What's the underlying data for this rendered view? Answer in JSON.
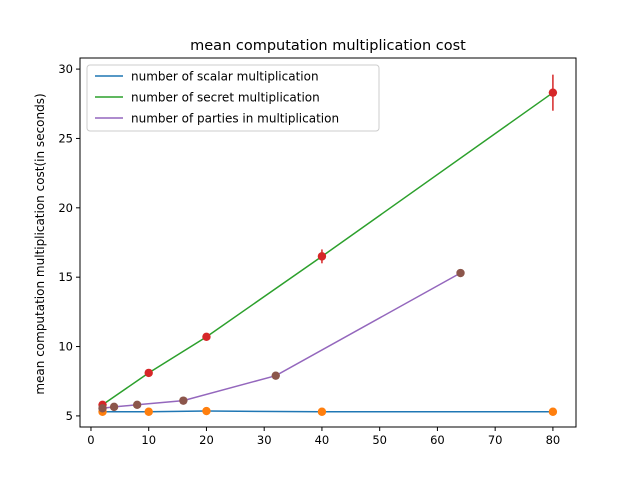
{
  "chart_data": {
    "type": "line",
    "title": "mean computation multiplication cost",
    "xlabel": "",
    "ylabel": "mean computation multiplication cost(in seconds)",
    "xlim": [
      -1.9,
      84.0
    ],
    "ylim": [
      4.2,
      30.8
    ],
    "xticks": [
      0,
      10,
      20,
      30,
      40,
      50,
      60,
      70,
      80
    ],
    "yticks": [
      5,
      10,
      15,
      20,
      25,
      30
    ],
    "grid": false,
    "legend_position": "top-left",
    "series": [
      {
        "name": "number of scalar multiplication",
        "line_color": "#1f77b4",
        "marker_color": "#ff7f0e",
        "x": [
          2,
          10,
          20,
          40,
          80
        ],
        "y": [
          5.3,
          5.3,
          5.35,
          5.3,
          5.3
        ],
        "err": [
          0,
          0,
          0,
          0,
          0
        ]
      },
      {
        "name": "number of secret multiplication",
        "line_color": "#2ca02c",
        "marker_color": "#d62728",
        "x": [
          2,
          10,
          20,
          40,
          80
        ],
        "y": [
          5.8,
          8.1,
          10.7,
          16.5,
          28.3
        ],
        "err": [
          0,
          0,
          0,
          0.5,
          1.3
        ]
      },
      {
        "name": "number of parties in multiplication",
        "line_color": "#9467bd",
        "marker_color": "#8c564b",
        "x": [
          2,
          4,
          8,
          16,
          32,
          64
        ],
        "y": [
          5.55,
          5.65,
          5.8,
          6.1,
          7.9,
          15.3
        ],
        "err": [
          0,
          0,
          0,
          0,
          0,
          0
        ]
      }
    ]
  }
}
